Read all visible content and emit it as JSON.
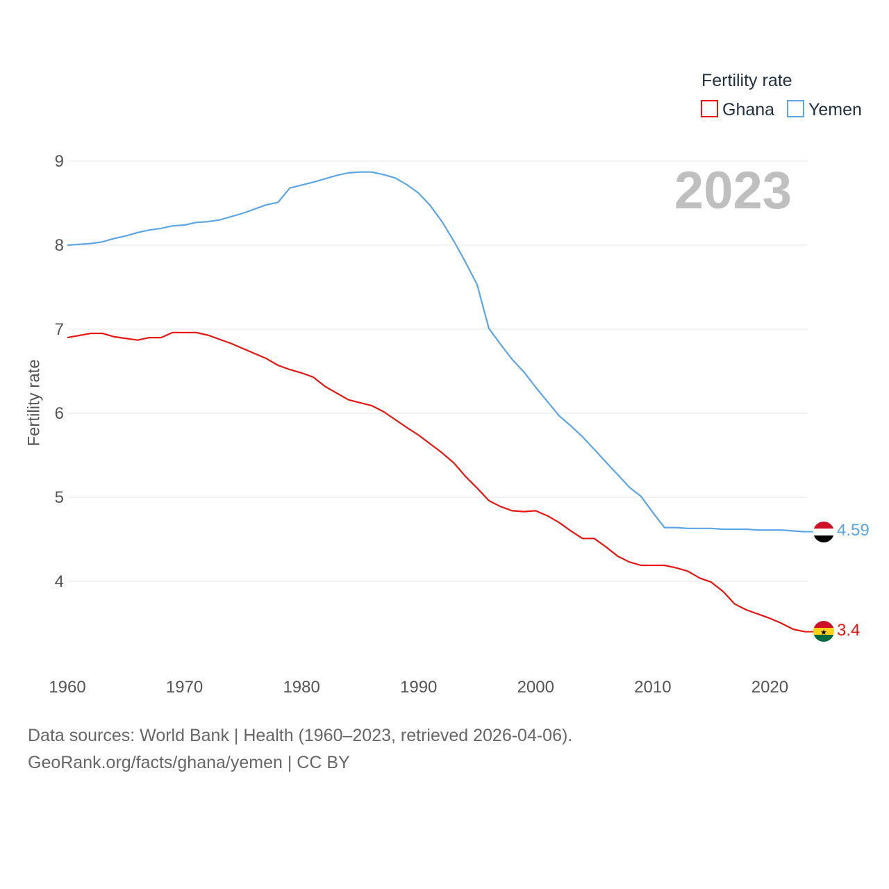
{
  "chart_data": {
    "type": "line",
    "legend_title": "Fertility rate",
    "ylabel": "Fertility rate",
    "year_label": "2023",
    "ylim": [
      3,
      9.3
    ],
    "xlim": [
      1960,
      2023
    ],
    "y_ticks": [
      "4",
      "5",
      "6",
      "7",
      "8",
      "9"
    ],
    "x_ticks": [
      "1960",
      "1970",
      "1980",
      "1990",
      "2000",
      "2010",
      "2020"
    ],
    "series": [
      {
        "name": "Ghana",
        "color": "#e8150f",
        "end_label": "3.4",
        "flag": "ghana-flag",
        "points": [
          [
            1960,
            6.9
          ],
          [
            1962,
            6.95
          ],
          [
            1963,
            6.95
          ],
          [
            1964,
            6.91
          ],
          [
            1966,
            6.87
          ],
          [
            1967,
            6.9
          ],
          [
            1968,
            6.9
          ],
          [
            1969,
            6.96
          ],
          [
            1971,
            6.96
          ],
          [
            1972,
            6.93
          ],
          [
            1974,
            6.83
          ],
          [
            1977,
            6.65
          ],
          [
            1978,
            6.57
          ],
          [
            1979,
            6.52
          ],
          [
            1980,
            6.48
          ],
          [
            1981,
            6.43
          ],
          [
            1982,
            6.32
          ],
          [
            1984,
            6.16
          ],
          [
            1986,
            6.09
          ],
          [
            1987,
            6.02
          ],
          [
            1989,
            5.83
          ],
          [
            1990,
            5.74
          ],
          [
            1992,
            5.53
          ],
          [
            1993,
            5.41
          ],
          [
            1994,
            5.25
          ],
          [
            1995,
            5.11
          ],
          [
            1996,
            4.96
          ],
          [
            1997,
            4.89
          ],
          [
            1998,
            4.84
          ],
          [
            1999,
            4.83
          ],
          [
            2000,
            4.84
          ],
          [
            2001,
            4.78
          ],
          [
            2002,
            4.7
          ],
          [
            2003,
            4.6
          ],
          [
            2004,
            4.51
          ],
          [
            2005,
            4.51
          ],
          [
            2006,
            4.41
          ],
          [
            2007,
            4.3
          ],
          [
            2008,
            4.23
          ],
          [
            2009,
            4.19
          ],
          [
            2011,
            4.19
          ],
          [
            2012,
            4.16
          ],
          [
            2013,
            4.12
          ],
          [
            2014,
            4.04
          ],
          [
            2015,
            3.99
          ],
          [
            2016,
            3.88
          ],
          [
            2017,
            3.73
          ],
          [
            2018,
            3.66
          ],
          [
            2020,
            3.56
          ],
          [
            2021,
            3.5
          ],
          [
            2022,
            3.43
          ],
          [
            2023,
            3.4
          ]
        ]
      },
      {
        "name": "Yemen",
        "color": "#5ba4e6",
        "end_label": "4.59",
        "flag": "yemen-flag",
        "points": [
          [
            1960,
            8.0
          ],
          [
            1962,
            8.02
          ],
          [
            1963,
            8.04
          ],
          [
            1964,
            8.08
          ],
          [
            1965,
            8.11
          ],
          [
            1966,
            8.15
          ],
          [
            1967,
            8.18
          ],
          [
            1968,
            8.2
          ],
          [
            1969,
            8.23
          ],
          [
            1970,
            8.24
          ],
          [
            1971,
            8.27
          ],
          [
            1972,
            8.28
          ],
          [
            1973,
            8.3
          ],
          [
            1975,
            8.38
          ],
          [
            1977,
            8.48
          ],
          [
            1978,
            8.51
          ],
          [
            1979,
            8.68
          ],
          [
            1981,
            8.75
          ],
          [
            1983,
            8.83
          ],
          [
            1984,
            8.86
          ],
          [
            1985,
            8.87
          ],
          [
            1986,
            8.87
          ],
          [
            1987,
            8.84
          ],
          [
            1988,
            8.8
          ],
          [
            1989,
            8.72
          ],
          [
            1990,
            8.62
          ],
          [
            1991,
            8.47
          ],
          [
            1992,
            8.28
          ],
          [
            1993,
            8.05
          ],
          [
            1994,
            7.8
          ],
          [
            1995,
            7.53
          ],
          [
            1996,
            7.01
          ],
          [
            1997,
            6.82
          ],
          [
            1998,
            6.64
          ],
          [
            1999,
            6.49
          ],
          [
            2000,
            6.31
          ],
          [
            2001,
            6.14
          ],
          [
            2002,
            5.97
          ],
          [
            2003,
            5.85
          ],
          [
            2004,
            5.72
          ],
          [
            2005,
            5.57
          ],
          [
            2006,
            5.42
          ],
          [
            2007,
            5.27
          ],
          [
            2008,
            5.12
          ],
          [
            2009,
            5.01
          ],
          [
            2010,
            4.82
          ],
          [
            2011,
            4.64
          ],
          [
            2012,
            4.64
          ],
          [
            2013,
            4.63
          ],
          [
            2015,
            4.63
          ],
          [
            2016,
            4.62
          ],
          [
            2018,
            4.62
          ],
          [
            2019,
            4.61
          ],
          [
            2021,
            4.61
          ],
          [
            2022,
            4.6
          ],
          [
            2023,
            4.59
          ]
        ]
      }
    ]
  },
  "footer": {
    "sources": "Data sources: World Bank | Health (1960–2023, retrieved 2026-04-06).",
    "attribution": "GeoRank.org/facts/ghana/yemen | CC BY"
  }
}
